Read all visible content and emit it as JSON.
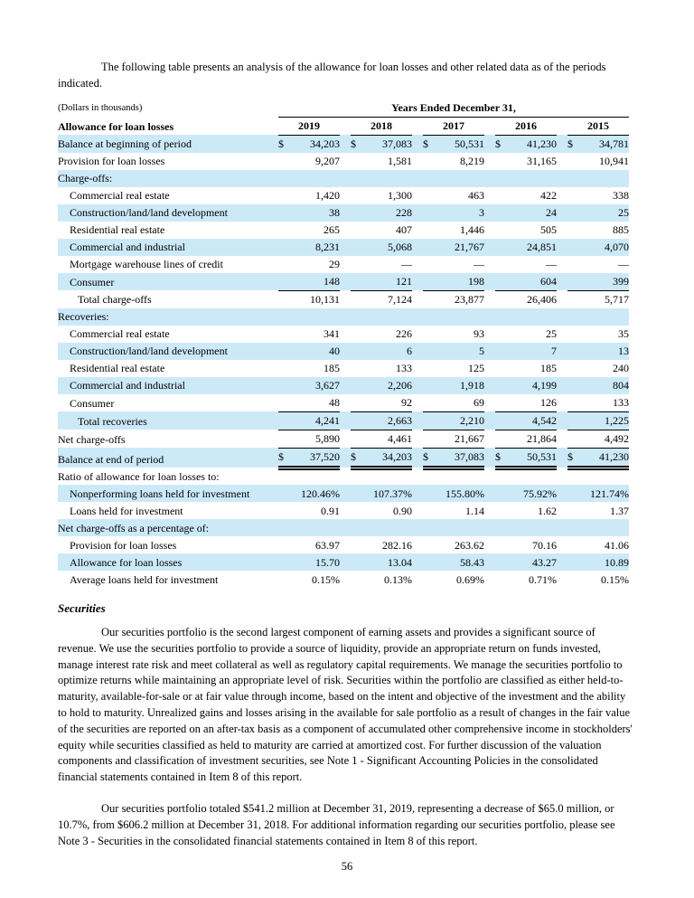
{
  "document": {
    "intro": "The following table presents an analysis of the allowance for loan losses and other related data as of the periods indicated.",
    "page_number": "56"
  },
  "table": {
    "units_note": "(Dollars in thousands)",
    "period_header": "Years Ended December 31,",
    "header_label": "Allowance for loan losses",
    "years": [
      "2019",
      "2018",
      "2017",
      "2016",
      "2015"
    ],
    "row_highlight_color": "#CCE9F8",
    "rows": [
      {
        "label": "Balance at beginning of period",
        "indent": 0,
        "dollar": true,
        "shaded": true,
        "border": "none",
        "values": [
          "34,203",
          "37,083",
          "50,531",
          "41,230",
          "34,781"
        ]
      },
      {
        "label": "Provision for loan losses",
        "indent": 0,
        "dollar": false,
        "shaded": false,
        "border": "none",
        "values": [
          "9,207",
          "1,581",
          "8,219",
          "31,165",
          "10,941"
        ]
      },
      {
        "label": "Charge-offs:",
        "indent": 0,
        "dollar": false,
        "shaded": true,
        "border": "none",
        "values": null
      },
      {
        "label": "Commercial real estate",
        "indent": 1,
        "dollar": false,
        "shaded": false,
        "border": "none",
        "values": [
          "1,420",
          "1,300",
          "463",
          "422",
          "338"
        ]
      },
      {
        "label": "Construction/land/land development",
        "indent": 1,
        "dollar": false,
        "shaded": true,
        "border": "none",
        "values": [
          "38",
          "228",
          "3",
          "24",
          "25"
        ]
      },
      {
        "label": "Residential real estate",
        "indent": 1,
        "dollar": false,
        "shaded": false,
        "border": "none",
        "values": [
          "265",
          "407",
          "1,446",
          "505",
          "885"
        ]
      },
      {
        "label": "Commercial and industrial",
        "indent": 1,
        "dollar": false,
        "shaded": true,
        "border": "none",
        "values": [
          "8,231",
          "5,068",
          "21,767",
          "24,851",
          "4,070"
        ]
      },
      {
        "label": "Mortgage warehouse lines of credit",
        "indent": 1,
        "dollar": false,
        "shaded": false,
        "border": "none",
        "values": [
          "29",
          "—",
          "—",
          "—",
          "—"
        ]
      },
      {
        "label": "Consumer",
        "indent": 1,
        "dollar": false,
        "shaded": true,
        "border": "single",
        "values": [
          "148",
          "121",
          "198",
          "604",
          "399"
        ]
      },
      {
        "label": "Total charge-offs",
        "indent": 2,
        "dollar": false,
        "shaded": false,
        "border": "none",
        "values": [
          "10,131",
          "7,124",
          "23,877",
          "26,406",
          "5,717"
        ]
      },
      {
        "label": "Recoveries:",
        "indent": 0,
        "dollar": false,
        "shaded": true,
        "border": "none",
        "values": null
      },
      {
        "label": "Commercial real estate",
        "indent": 1,
        "dollar": false,
        "shaded": false,
        "border": "none",
        "values": [
          "341",
          "226",
          "93",
          "25",
          "35"
        ]
      },
      {
        "label": "Construction/land/land development",
        "indent": 1,
        "dollar": false,
        "shaded": true,
        "border": "none",
        "values": [
          "40",
          "6",
          "5",
          "7",
          "13"
        ]
      },
      {
        "label": "Residential real estate",
        "indent": 1,
        "dollar": false,
        "shaded": false,
        "border": "none",
        "values": [
          "185",
          "133",
          "125",
          "185",
          "240"
        ]
      },
      {
        "label": "Commercial and industrial",
        "indent": 1,
        "dollar": false,
        "shaded": true,
        "border": "none",
        "values": [
          "3,627",
          "2,206",
          "1,918",
          "4,199",
          "804"
        ]
      },
      {
        "label": "Consumer",
        "indent": 1,
        "dollar": false,
        "shaded": false,
        "border": "single",
        "values": [
          "48",
          "92",
          "69",
          "126",
          "133"
        ]
      },
      {
        "label": "Total recoveries",
        "indent": 2,
        "dollar": false,
        "shaded": true,
        "border": "single",
        "values": [
          "4,241",
          "2,663",
          "2,210",
          "4,542",
          "1,225"
        ]
      },
      {
        "label": "Net charge-offs",
        "indent": 0,
        "dollar": false,
        "shaded": false,
        "border": "single",
        "values": [
          "5,890",
          "4,461",
          "21,667",
          "21,864",
          "4,492"
        ]
      },
      {
        "label": "Balance at end of period",
        "indent": 0,
        "dollar": true,
        "shaded": true,
        "border": "double",
        "values": [
          "37,520",
          "34,203",
          "37,083",
          "50,531",
          "41,230"
        ]
      },
      {
        "label": "Ratio of allowance for loan losses to:",
        "indent": 0,
        "dollar": false,
        "shaded": false,
        "border": "none",
        "values": null
      },
      {
        "label": "Nonperforming loans held for investment",
        "indent": 1,
        "dollar": false,
        "shaded": true,
        "border": "none",
        "values": [
          "120.46%",
          "107.37%",
          "155.80%",
          "75.92%",
          "121.74%"
        ]
      },
      {
        "label": "Loans held for investment",
        "indent": 1,
        "dollar": false,
        "shaded": false,
        "border": "none",
        "values": [
          "0.91",
          "0.90",
          "1.14",
          "1.62",
          "1.37"
        ]
      },
      {
        "label": "Net charge-offs as a percentage of:",
        "indent": 0,
        "dollar": false,
        "shaded": true,
        "border": "none",
        "values": null
      },
      {
        "label": "Provision for loan losses",
        "indent": 1,
        "dollar": false,
        "shaded": false,
        "border": "none",
        "values": [
          "63.97",
          "282.16",
          "263.62",
          "70.16",
          "41.06"
        ]
      },
      {
        "label": "Allowance for loan losses",
        "indent": 1,
        "dollar": false,
        "shaded": true,
        "border": "none",
        "values": [
          "15.70",
          "13.04",
          "58.43",
          "43.27",
          "10.89"
        ]
      },
      {
        "label": "Average loans held for investment",
        "indent": 1,
        "dollar": false,
        "shaded": false,
        "border": "none",
        "values": [
          "0.15%",
          "0.13%",
          "0.69%",
          "0.71%",
          "0.15%"
        ]
      }
    ]
  },
  "securities": {
    "heading": "Securities",
    "paragraphs": [
      "Our securities portfolio is the second largest component of earning assets and provides a significant source of revenue. We use the securities portfolio to provide a source of liquidity, provide an appropriate return on funds invested, manage interest rate risk and meet collateral as well as regulatory capital requirements. We manage the securities portfolio to optimize returns while maintaining an appropriate level of risk. Securities within the portfolio are classified as either held-to-maturity, available-for-sale or at fair value through income, based on the intent and objective of the investment and the ability to hold to maturity. Unrealized gains and losses arising in the available for sale portfolio as a result of changes in the fair value of the securities are reported on an after-tax basis as a component of accumulated other comprehensive income in stockholders' equity while securities classified as held to maturity are carried at amortized cost. For further discussion of the valuation components and classification of investment securities, see Note 1 - Significant Accounting Policies in the consolidated financial statements contained in Item 8 of this report.",
      "Our securities portfolio totaled $541.2 million at December 31, 2019, representing a decrease of $65.0 million, or 10.7%, from $606.2 million at December 31, 2018. For additional information regarding our securities portfolio, please see Note 3 - Securities in the consolidated financial statements contained in Item 8 of this report."
    ]
  }
}
